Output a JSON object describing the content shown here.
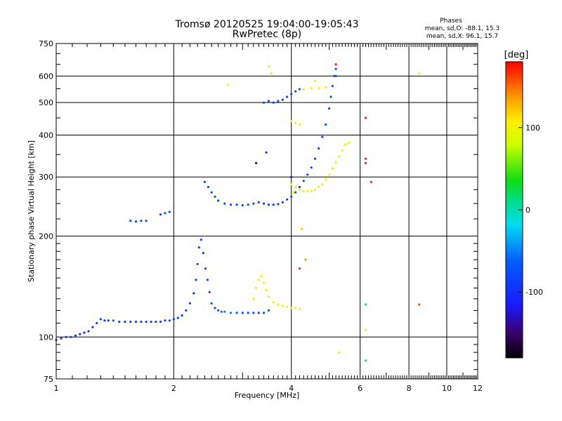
{
  "chart_data": {
    "type": "scatter",
    "title": "Tromsø 20120525 19:04:00-19:05:43",
    "subtitle": "RwPretec (8p)",
    "xlabel": "Frequency [MHz]",
    "ylabel": "Stationary phase Virtual Height [km]",
    "x_scale": "log",
    "y_scale": "log",
    "xlim": [
      1,
      12
    ],
    "ylim": [
      75,
      750
    ],
    "x_ticks": [
      1,
      2,
      4,
      6,
      8,
      10,
      12
    ],
    "x_tick_labels": [
      "1",
      "2",
      "4",
      "6",
      "8",
      "10",
      "12"
    ],
    "y_ticks": [
      75,
      100,
      200,
      300,
      400,
      500,
      600,
      750
    ],
    "y_tick_labels": [
      "75",
      "100",
      "200",
      "300",
      "400",
      "500",
      "600",
      "750"
    ],
    "grid": true,
    "legend": {
      "title": "Phases",
      "lines": [
        "mean, sd,O: -88.1, 15.3",
        "mean, sd,X:  96.1, 15.7"
      ],
      "placement": "top-right"
    },
    "colorbar": {
      "label": "[deg]",
      "range": [
        -180,
        180
      ],
      "ticks": [
        -100,
        0,
        100
      ],
      "tick_labels": [
        "-100",
        "0",
        "100"
      ],
      "colormap": "rainbow"
    },
    "series": [
      {
        "points": [
          [
            1.0,
            98,
            -95
          ],
          [
            1.03,
            99,
            -95
          ],
          [
            1.06,
            100,
            -95
          ],
          [
            1.09,
            100,
            -95
          ],
          [
            1.12,
            101,
            -95
          ],
          [
            1.15,
            102,
            -95
          ],
          [
            1.18,
            103,
            -95
          ],
          [
            1.21,
            104,
            -92
          ],
          [
            1.24,
            107,
            -92
          ],
          [
            1.27,
            110,
            -92
          ],
          [
            1.3,
            113,
            -90
          ],
          [
            1.33,
            112,
            -90
          ],
          [
            1.36,
            112,
            -90
          ],
          [
            1.4,
            112,
            -85
          ],
          [
            1.45,
            111,
            -88
          ],
          [
            1.5,
            111,
            -88
          ],
          [
            1.55,
            111,
            -88
          ],
          [
            1.6,
            111,
            -88
          ],
          [
            1.65,
            111,
            -88
          ],
          [
            1.7,
            111,
            -88
          ],
          [
            1.75,
            111,
            -88
          ],
          [
            1.8,
            111,
            -88
          ],
          [
            1.85,
            111,
            -88
          ],
          [
            1.9,
            112,
            -88
          ],
          [
            1.95,
            112,
            -88
          ],
          [
            2.0,
            113,
            -88
          ],
          [
            2.05,
            114,
            -88
          ],
          [
            2.1,
            116,
            -88
          ],
          [
            2.15,
            120,
            -85
          ],
          [
            2.2,
            126,
            -85
          ],
          [
            2.25,
            135,
            -85
          ],
          [
            2.28,
            148,
            -85
          ],
          [
            2.3,
            165,
            -85
          ],
          [
            2.32,
            185,
            -85
          ],
          [
            2.35,
            195,
            -80
          ],
          [
            2.38,
            178,
            -80
          ],
          [
            2.41,
            160,
            -80
          ],
          [
            2.44,
            148,
            -78
          ],
          [
            2.47,
            136,
            -78
          ],
          [
            2.5,
            126,
            -75
          ],
          [
            2.55,
            122,
            -75
          ],
          [
            2.6,
            120,
            -60
          ],
          [
            2.65,
            119,
            -55
          ],
          [
            2.7,
            119,
            -50
          ],
          [
            2.8,
            118,
            -50
          ],
          [
            2.9,
            118,
            -60
          ],
          [
            3.0,
            118,
            -80
          ],
          [
            3.1,
            118,
            -80
          ],
          [
            3.2,
            118,
            -80
          ],
          [
            3.3,
            118,
            -80
          ],
          [
            3.4,
            118,
            -80
          ],
          [
            3.5,
            120,
            -80
          ],
          [
            1.55,
            222,
            -80
          ],
          [
            1.6,
            221,
            -80
          ],
          [
            1.65,
            222,
            -80
          ],
          [
            1.7,
            222,
            -80
          ],
          [
            1.85,
            232,
            -80
          ],
          [
            1.9,
            234,
            -80
          ],
          [
            1.95,
            236,
            -80
          ],
          [
            2.4,
            290,
            -85
          ],
          [
            2.45,
            280,
            -80
          ],
          [
            2.5,
            270,
            -80
          ],
          [
            2.55,
            262,
            -80
          ],
          [
            2.6,
            255,
            -80
          ],
          [
            2.7,
            250,
            -80
          ],
          [
            2.8,
            248,
            -80
          ],
          [
            2.9,
            248,
            -85
          ],
          [
            3.0,
            247,
            -85
          ],
          [
            3.1,
            248,
            -85
          ],
          [
            3.2,
            250,
            -85
          ],
          [
            3.3,
            252,
            -85
          ],
          [
            3.4,
            250,
            -85
          ],
          [
            3.5,
            248,
            -85
          ],
          [
            3.6,
            248,
            -85
          ],
          [
            3.7,
            249,
            -85
          ],
          [
            3.8,
            252,
            -85
          ],
          [
            3.9,
            257,
            -85
          ],
          [
            4.0,
            262,
            -85
          ],
          [
            4.1,
            270,
            -85
          ],
          [
            4.2,
            280,
            -85
          ],
          [
            4.3,
            292,
            -85
          ],
          [
            4.4,
            305,
            -85
          ],
          [
            4.5,
            320,
            -85
          ],
          [
            4.6,
            340,
            -85
          ],
          [
            4.7,
            365,
            -85
          ],
          [
            4.8,
            395,
            -85
          ],
          [
            4.9,
            430,
            -80
          ],
          [
            5.0,
            480,
            -80
          ],
          [
            5.05,
            520,
            -80
          ],
          [
            5.1,
            560,
            -80
          ],
          [
            5.15,
            600,
            -80
          ],
          [
            5.2,
            630,
            -80
          ],
          [
            3.4,
            500,
            -85
          ],
          [
            3.5,
            505,
            -85
          ],
          [
            3.6,
            500,
            -85
          ],
          [
            3.7,
            505,
            -85
          ],
          [
            3.8,
            510,
            -85
          ],
          [
            3.9,
            520,
            -85
          ],
          [
            4.0,
            530,
            -80
          ],
          [
            4.1,
            540,
            -80
          ],
          [
            4.2,
            548,
            -70
          ],
          [
            3.25,
            330,
            -140
          ],
          [
            3.45,
            355,
            -100
          ],
          [
            4.0,
            300,
            -120
          ],
          [
            5.2,
            600,
            -80
          ]
        ],
        "value": "phase [deg]"
      },
      {
        "points": [
          [
            3.2,
            130,
            100
          ],
          [
            3.25,
            140,
            100
          ],
          [
            3.3,
            148,
            100
          ],
          [
            3.35,
            152,
            100
          ],
          [
            3.4,
            145,
            100
          ],
          [
            3.45,
            138,
            100
          ],
          [
            3.5,
            132,
            100
          ],
          [
            3.6,
            127,
            100
          ],
          [
            3.7,
            125,
            100
          ],
          [
            3.8,
            124,
            100
          ],
          [
            3.9,
            123,
            100
          ],
          [
            4.0,
            122,
            100
          ],
          [
            4.1,
            122,
            100
          ],
          [
            4.2,
            121,
            100
          ],
          [
            4.0,
            285,
            100
          ],
          [
            4.1,
            280,
            100
          ],
          [
            4.2,
            275,
            100
          ],
          [
            4.3,
            272,
            100
          ],
          [
            4.4,
            272,
            100
          ],
          [
            4.5,
            273,
            100
          ],
          [
            4.6,
            275,
            100
          ],
          [
            4.7,
            280,
            100
          ],
          [
            4.8,
            285,
            100
          ],
          [
            4.9,
            295,
            100
          ],
          [
            5.0,
            305,
            100
          ],
          [
            5.1,
            318,
            100
          ],
          [
            5.2,
            332,
            100
          ],
          [
            5.3,
            345,
            100
          ],
          [
            5.4,
            360,
            100
          ],
          [
            5.5,
            375,
            100
          ],
          [
            5.6,
            380,
            100
          ],
          [
            4.0,
            440,
            100
          ],
          [
            4.1,
            435,
            100
          ],
          [
            4.2,
            430,
            100
          ],
          [
            4.3,
            548,
            100
          ],
          [
            4.5,
            552,
            100
          ],
          [
            4.7,
            552,
            100
          ],
          [
            4.9,
            555,
            100
          ],
          [
            2.75,
            565,
            100
          ],
          [
            3.5,
            640,
            110
          ],
          [
            3.55,
            610,
            110
          ],
          [
            4.05,
            270,
            100
          ],
          [
            4.25,
            210,
            120
          ],
          [
            4.35,
            170,
            140
          ],
          [
            4.6,
            580,
            100
          ],
          [
            5.3,
            90,
            100
          ],
          [
            6.2,
            105,
            90
          ],
          [
            6.2,
            125,
            0
          ],
          [
            6.2,
            85,
            0
          ],
          [
            8.5,
            610,
            100
          ],
          [
            6.2,
            450,
            170
          ],
          [
            6.2,
            340,
            170
          ],
          [
            6.2,
            330,
            170
          ],
          [
            8.5,
            125,
            160
          ],
          [
            4.2,
            160,
            170
          ],
          [
            5.2,
            650,
            170
          ],
          [
            6.4,
            290,
            170
          ]
        ],
        "value": "phase [deg]"
      }
    ]
  }
}
